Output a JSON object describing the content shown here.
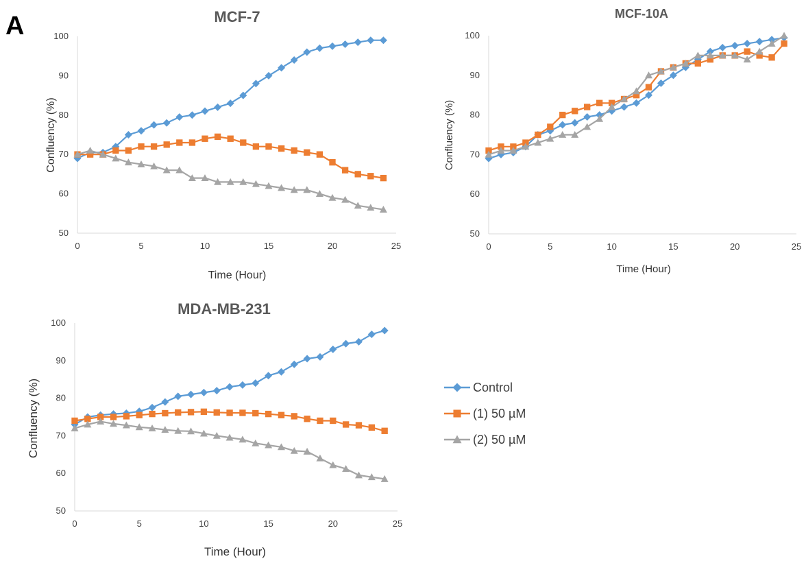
{
  "panel_label": "A",
  "legend": {
    "entries": [
      {
        "label": "Control",
        "color": "#5B9BD5",
        "marker": "diamond"
      },
      {
        "label": "(1) 50 µM",
        "color": "#ED7D31",
        "marker": "square"
      },
      {
        "label": "(2) 50 µM",
        "color": "#A5A5A5",
        "marker": "triangle"
      }
    ]
  },
  "chart_data": [
    {
      "type": "line",
      "title": "MCF-7",
      "xlabel": "Time (Hour)",
      "ylabel": "Confluency (%)",
      "xlim": [
        0,
        25
      ],
      "ylim": [
        50,
        100
      ],
      "xticks": [
        0,
        5,
        10,
        15,
        20,
        25
      ],
      "yticks": [
        50,
        60,
        70,
        80,
        90,
        100
      ],
      "grid": false,
      "x": [
        0,
        1,
        2,
        3,
        4,
        5,
        6,
        7,
        8,
        9,
        10,
        11,
        12,
        13,
        14,
        15,
        16,
        17,
        18,
        19,
        20,
        21,
        22,
        23,
        24
      ],
      "series": [
        {
          "name": "Control",
          "color": "#5B9BD5",
          "marker": "diamond",
          "values": [
            69,
            70.5,
            70.5,
            72,
            75,
            76,
            77.5,
            78,
            79.5,
            80,
            81,
            82,
            83,
            85,
            88,
            90,
            92,
            94,
            96,
            97,
            97.5,
            98,
            98.5,
            99,
            99
          ]
        },
        {
          "name": "(1) 50 µM",
          "color": "#ED7D31",
          "marker": "square",
          "values": [
            70,
            70,
            70,
            71,
            71,
            72,
            72,
            72.5,
            73,
            73,
            74,
            74.5,
            74,
            73,
            72,
            72,
            71.5,
            71,
            70.5,
            70,
            68,
            66,
            65,
            64.5,
            64
          ]
        },
        {
          "name": "(2) 50 µM",
          "color": "#A5A5A5",
          "marker": "triangle",
          "values": [
            70,
            71,
            70,
            69,
            68,
            67.5,
            67,
            66,
            66,
            64,
            64,
            63,
            63,
            63,
            62.5,
            62,
            61.5,
            61,
            61,
            60,
            59,
            58.5,
            57,
            56.5,
            56
          ]
        }
      ]
    },
    {
      "type": "line",
      "title": "MCF-10A",
      "xlabel": "Time (Hour)",
      "ylabel": "Confluency (%)",
      "xlim": [
        0,
        25
      ],
      "ylim": [
        50,
        100
      ],
      "xticks": [
        0,
        5,
        10,
        15,
        20,
        25
      ],
      "yticks": [
        50,
        60,
        70,
        80,
        90,
        100
      ],
      "grid": false,
      "x": [
        0,
        1,
        2,
        3,
        4,
        5,
        6,
        7,
        8,
        9,
        10,
        11,
        12,
        13,
        14,
        15,
        16,
        17,
        18,
        19,
        20,
        21,
        22,
        23,
        24
      ],
      "series": [
        {
          "name": "Control",
          "color": "#5B9BD5",
          "marker": "diamond",
          "values": [
            69,
            70,
            70.5,
            72,
            75,
            76,
            77.5,
            78,
            79.5,
            80,
            81,
            82,
            83,
            85,
            88,
            90,
            92,
            94,
            96,
            97,
            97.5,
            98,
            98.5,
            99,
            99.5
          ]
        },
        {
          "name": "(1) 50 µM",
          "color": "#ED7D31",
          "marker": "square",
          "values": [
            71,
            72,
            72,
            73,
            75,
            77,
            80,
            81,
            82,
            83,
            83,
            84,
            85,
            87,
            91,
            92,
            93,
            93,
            94,
            95,
            95,
            96,
            95,
            94.5,
            98
          ]
        },
        {
          "name": "(2) 50 µM",
          "color": "#A5A5A5",
          "marker": "triangle",
          "values": [
            70,
            71,
            71,
            72,
            73,
            74,
            75,
            75,
            77,
            79,
            82,
            84,
            86,
            90,
            91,
            92,
            93,
            95,
            95,
            95,
            95,
            94,
            96,
            98,
            100
          ]
        }
      ]
    },
    {
      "type": "line",
      "title": "MDA-MB-231",
      "xlabel": "Time (Hour)",
      "ylabel": "Confluency (%)",
      "xlim": [
        0,
        25
      ],
      "ylim": [
        50,
        100
      ],
      "xticks": [
        0,
        5,
        10,
        15,
        20,
        25
      ],
      "yticks": [
        50,
        60,
        70,
        80,
        90,
        100
      ],
      "grid": false,
      "x": [
        0,
        1,
        2,
        3,
        4,
        5,
        6,
        7,
        8,
        9,
        10,
        11,
        12,
        13,
        14,
        15,
        16,
        17,
        18,
        19,
        20,
        21,
        22,
        23,
        24
      ],
      "series": [
        {
          "name": "Control",
          "color": "#5B9BD5",
          "marker": "diamond",
          "values": [
            73,
            75,
            75.5,
            75.8,
            76,
            76.5,
            77.5,
            79,
            80.5,
            81,
            81.5,
            82,
            83,
            83.5,
            84,
            86,
            87,
            89,
            90.5,
            91,
            93,
            94.5,
            95,
            97,
            98
          ]
        },
        {
          "name": "(1) 50 µM",
          "color": "#ED7D31",
          "marker": "square",
          "values": [
            74,
            74.5,
            75,
            75,
            75.2,
            75.5,
            75.8,
            76,
            76.2,
            76.3,
            76.4,
            76.2,
            76.1,
            76.1,
            76,
            75.8,
            75.5,
            75.2,
            74.5,
            74,
            74,
            73,
            72.8,
            72.2,
            71.3
          ]
        },
        {
          "name": "(2) 50 µM",
          "color": "#A5A5A5",
          "marker": "triangle",
          "values": [
            72,
            73,
            73.8,
            73.2,
            72.8,
            72.3,
            72,
            71.6,
            71.3,
            71.2,
            70.6,
            70,
            69.5,
            69,
            68,
            67.5,
            67,
            66,
            65.8,
            64,
            62.2,
            61.2,
            59.5,
            59,
            58.5
          ]
        }
      ]
    }
  ]
}
